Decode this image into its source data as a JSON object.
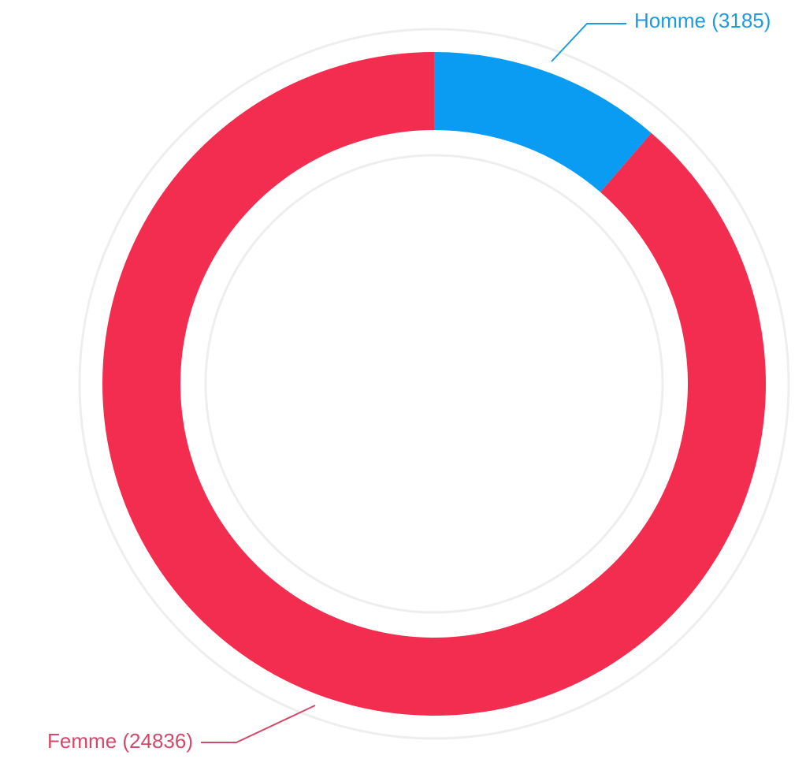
{
  "chart_data": {
    "type": "donut",
    "values": [
      3185,
      24836
    ],
    "value_labels": [
      "Homme (3185)",
      "Femme (24836)"
    ],
    "colors": [
      "#0a9cf2",
      "#f22d4f"
    ],
    "label_colors": [
      "#1e9be0",
      "#d4486a"
    ]
  }
}
